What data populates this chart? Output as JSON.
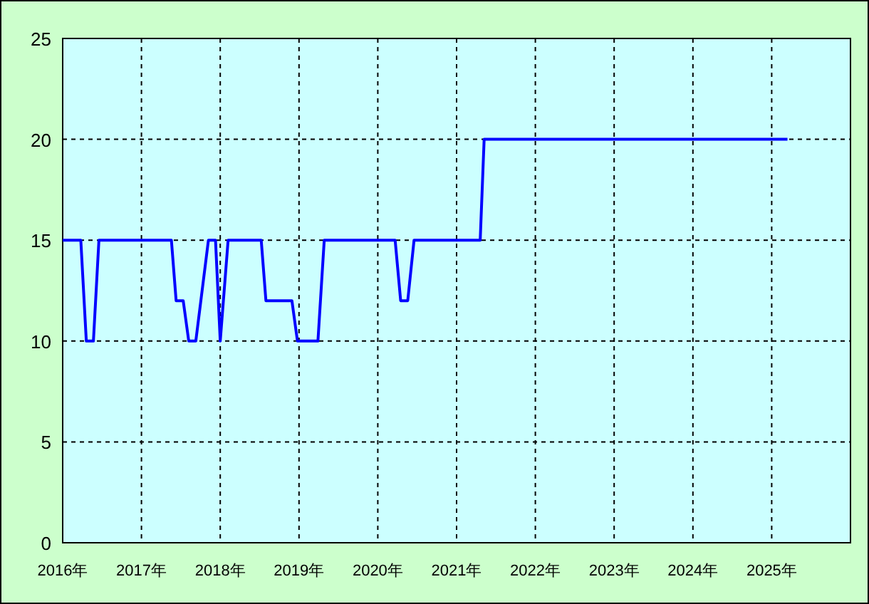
{
  "chart_data": {
    "type": "line",
    "x": [
      2016.0,
      2016.23,
      2016.3,
      2016.39,
      2016.46,
      2017.38,
      2017.44,
      2017.53,
      2017.6,
      2017.69,
      2017.85,
      2017.94,
      2018.0,
      2018.1,
      2018.52,
      2018.58,
      2018.91,
      2018.98,
      2019.24,
      2019.32,
      2020.22,
      2020.29,
      2020.38,
      2020.46,
      2021.3,
      2021.35,
      2025.2
    ],
    "values": [
      15,
      15,
      10,
      10,
      15,
      15,
      12,
      12,
      10,
      10,
      15,
      15,
      10,
      15,
      15,
      12,
      12,
      10,
      10,
      15,
      15,
      12,
      12,
      15,
      15,
      20,
      20
    ],
    "color": "#0000ff",
    "xlim": [
      2016,
      2026
    ],
    "xticks": [
      {
        "value": 2016,
        "label": "2016年"
      },
      {
        "value": 2017,
        "label": "2017年"
      },
      {
        "value": 2018,
        "label": "2018年"
      },
      {
        "value": 2019,
        "label": "2019年"
      },
      {
        "value": 2020,
        "label": "2020年"
      },
      {
        "value": 2021,
        "label": "2021年"
      },
      {
        "value": 2022,
        "label": "2022年"
      },
      {
        "value": 2023,
        "label": "2023年"
      },
      {
        "value": 2024,
        "label": "2024年"
      },
      {
        "value": 2025,
        "label": "2025年"
      }
    ],
    "ylim": [
      0,
      25
    ],
    "yticks": [
      0,
      5,
      10,
      15,
      20,
      25
    ],
    "grid": true
  }
}
